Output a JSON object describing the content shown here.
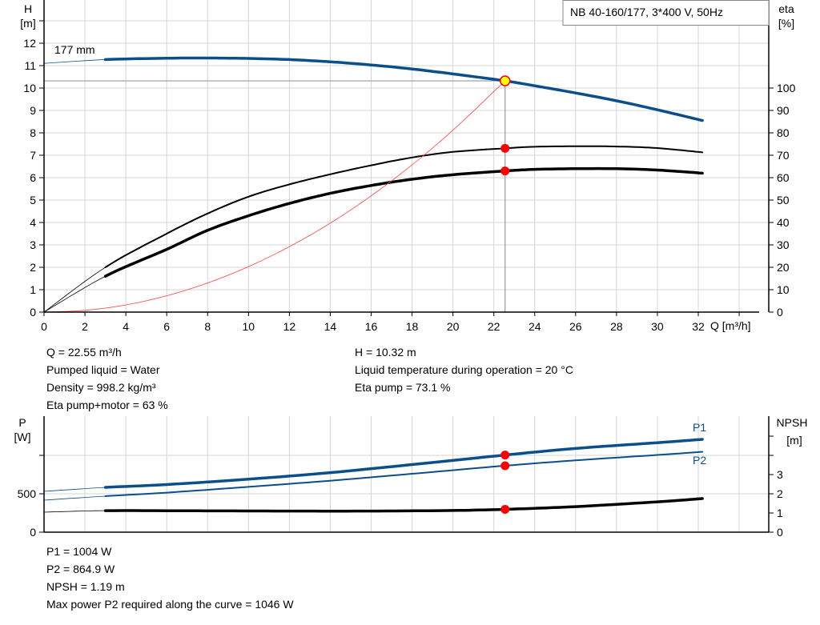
{
  "title_box": "NB 40-160/177, 3*400 V, 50Hz",
  "colors": {
    "head": "#0b4f8a",
    "eta": "#000000",
    "system": "#ff4040",
    "point": "#ff0000",
    "operating_point_fill": "#ffff00",
    "grid": "#d4d4d4"
  },
  "chart_data": [
    {
      "type": "line",
      "title": "",
      "xlabel": "Q [m³/h]",
      "ylabel_left": [
        "H",
        "[m]"
      ],
      "ylabel_right": [
        "eta",
        "[%]"
      ],
      "xlim": [
        0,
        35
      ],
      "ylim_left": [
        0,
        14
      ],
      "ylim_right": [
        0,
        140
      ],
      "x_ticks": [
        0,
        2,
        4,
        6,
        8,
        10,
        12,
        14,
        16,
        18,
        20,
        22,
        24,
        26,
        28,
        30,
        32
      ],
      "y_ticks_left": [
        0,
        1,
        2,
        3,
        4,
        5,
        6,
        7,
        8,
        9,
        10,
        11,
        12
      ],
      "y_ticks_right": [
        0,
        10,
        20,
        30,
        40,
        50,
        60,
        70,
        80,
        90,
        100
      ],
      "grid": true,
      "curve_label": "177 mm",
      "series": [
        {
          "key": "head",
          "axis": "left",
          "thin_until": 3,
          "x": [
            0,
            3,
            6,
            8,
            10,
            12,
            14,
            16,
            18,
            20,
            22.55,
            24,
            26,
            28,
            30,
            32.2
          ],
          "y": [
            11.1,
            11.27,
            11.33,
            11.34,
            11.32,
            11.27,
            11.17,
            11.03,
            10.85,
            10.63,
            10.32,
            10.1,
            9.78,
            9.43,
            9.03,
            8.55
          ]
        },
        {
          "key": "eta_pump",
          "axis": "right",
          "thin_until": 3,
          "x": [
            0,
            3,
            6,
            8,
            10,
            12,
            14,
            16,
            18,
            20,
            22.55,
            24,
            26,
            28,
            30,
            32.2
          ],
          "y": [
            0,
            20,
            35,
            44,
            51.5,
            57,
            61.5,
            65.5,
            69,
            71.5,
            73.1,
            73.8,
            74,
            73.9,
            73.2,
            71.3
          ]
        },
        {
          "key": "eta_pump_motor",
          "axis": "right",
          "thin_until": 3,
          "x": [
            0,
            3,
            6,
            8,
            10,
            12,
            14,
            16,
            18,
            20,
            22.55,
            24,
            26,
            28,
            30,
            32.2
          ],
          "y": [
            0,
            16,
            28,
            36.5,
            43,
            48.5,
            53,
            56.5,
            59.3,
            61.3,
            63,
            63.7,
            64,
            64,
            63.4,
            62
          ]
        },
        {
          "key": "system",
          "axis": "left",
          "x": [
            0,
            2,
            4,
            6,
            8,
            10,
            12,
            14,
            16,
            18,
            20,
            22.55
          ],
          "y": [
            0,
            0.08,
            0.32,
            0.73,
            1.3,
            2.03,
            2.92,
            3.97,
            5.19,
            6.57,
            8.12,
            10.32
          ]
        }
      ],
      "operating_point": {
        "Q": 22.55,
        "H": 10.32,
        "eta_pump": 73.1,
        "eta_pump_motor": 63
      }
    },
    {
      "type": "line",
      "ylabel_left": [
        "P",
        "[W]"
      ],
      "ylabel_right": [
        "NPSH",
        "[m]"
      ],
      "xlim": [
        0,
        35
      ],
      "ylim_left": [
        0,
        1500
      ],
      "ylim_right": [
        0,
        6.25
      ],
      "y_ticks_left": [
        0,
        500,
        1000
      ],
      "y_tick_labels_left": [
        "0",
        "500",
        ""
      ],
      "y_ticks_right": [
        0,
        1,
        2,
        3,
        4,
        5
      ],
      "y_tick_labels_right": [
        "0",
        "1",
        "2",
        "3",
        "",
        ""
      ],
      "grid": true,
      "series": [
        {
          "key": "P1",
          "name": "P1",
          "axis": "left",
          "thin_until": 3,
          "x": [
            0,
            3,
            6,
            10,
            14,
            18,
            22.55,
            26,
            30,
            32.2
          ],
          "y": [
            531,
            583,
            620,
            690,
            775,
            880,
            1004,
            1090,
            1165,
            1208
          ]
        },
        {
          "key": "P2",
          "name": "P2",
          "axis": "left",
          "thin_until": 3,
          "x": [
            0,
            3,
            6,
            10,
            14,
            18,
            22.55,
            26,
            30,
            32.2
          ],
          "y": [
            417,
            469,
            515,
            590,
            670,
            760,
            865,
            935,
            1005,
            1046
          ]
        },
        {
          "key": "NPSH",
          "axis": "right",
          "thin_until": 3,
          "x": [
            0,
            3,
            8,
            12,
            16,
            20,
            22.55,
            26,
            30,
            32.2
          ],
          "y": [
            1.04,
            1.12,
            1.11,
            1.1,
            1.1,
            1.13,
            1.19,
            1.33,
            1.58,
            1.75
          ]
        }
      ],
      "operating_point": {
        "Q": 22.55,
        "P1": 1004,
        "P2": 864.9,
        "NPSH": 1.19
      }
    }
  ],
  "info_top": {
    "left": [
      "Q = 22.55 m³/h",
      "Pumped liquid = Water",
      "Density = 998.2 kg/m³",
      "Eta pump+motor = 63 %"
    ],
    "right": [
      "H = 10.32 m",
      "Liquid temperature during operation = 20 °C",
      "Eta pump = 73.1 %"
    ]
  },
  "info_bottom": [
    "P1 = 1004 W",
    "P2 = 864.9 W",
    "NPSH = 1.19 m",
    "Max power P2 required along the curve = 1046 W"
  ]
}
